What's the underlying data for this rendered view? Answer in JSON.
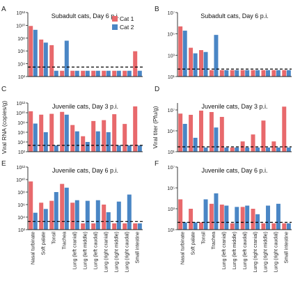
{
  "figure": {
    "legend": [
      {
        "name": "Cat 1",
        "color": "#e8696c"
      },
      {
        "name": "Cat 2",
        "color": "#4a86c5"
      }
    ],
    "ylabel_left": "Viral RNA (copies/g)",
    "ylabel_right": "Viral titer (Pfu/g)",
    "threshold_color": "#000000"
  },
  "chart_data": [
    {
      "panel": "A",
      "type": "bar",
      "title": "Subadult cats, Day 6 p.i.",
      "ylabel": "",
      "scale": "log10",
      "ylim": [
        100,
        1000000000000
      ],
      "yticks": [
        {
          "v": 100,
          "label": "10²"
        },
        {
          "v": 10000,
          "label": "10⁴"
        },
        {
          "v": 1000000,
          "label": "10⁶"
        },
        {
          "v": 100000000,
          "label": "10⁸"
        },
        {
          "v": 10000000000,
          "label": "10¹⁰"
        },
        {
          "v": 1000000000000,
          "label": "10¹²"
        }
      ],
      "threshold": 3000,
      "categories": [
        "Nasal turbinate",
        "Soft palate",
        "Tonsil",
        "Trachea",
        "Lung (left cranial)",
        "Lung (left middle)",
        "Lung (left caudal)",
        "Lung (right cranial)",
        "Lung (right middle)",
        "Lung (right caudal)",
        "Small intestine"
      ],
      "show_xlabels": false,
      "series": [
        {
          "name": "Cat 1",
          "values": [
            8000000000,
            60000000,
            8000000,
            800,
            800,
            800,
            800,
            800,
            800,
            800,
            900000
          ]
        },
        {
          "name": "Cat 2",
          "values": [
            2000000000,
            20000000,
            800,
            40000000,
            800,
            800,
            800,
            800,
            800,
            800,
            800
          ]
        }
      ]
    },
    {
      "panel": "B",
      "type": "bar",
      "title": "Subadult cats, Day 6 p.i.",
      "ylabel": "",
      "scale": "log10",
      "ylim": [
        10,
        10000000
      ],
      "yticks": [
        {
          "v": 10,
          "label": "10¹"
        },
        {
          "v": 1000,
          "label": "10³"
        },
        {
          "v": 100000,
          "label": "10⁵"
        },
        {
          "v": 10000000,
          "label": "10⁷"
        }
      ],
      "threshold": 50,
      "categories": [
        "Nasal turbinate",
        "Soft palate",
        "Tonsil",
        "Trachea",
        "Lung (left cranial)",
        "Lung (left middle)",
        "Lung (left caudal)",
        "Lung (right cranial)",
        "Lung (right middle)",
        "Lung (right caudal)",
        "Small intestine"
      ],
      "show_xlabels": false,
      "series": [
        {
          "name": "Cat 1",
          "values": [
            500000,
            5000,
            3000,
            40,
            40,
            40,
            40,
            40,
            40,
            40,
            40
          ]
        },
        {
          "name": "Cat 2",
          "values": [
            200000,
            1500,
            2000,
            80000,
            40,
            40,
            40,
            40,
            40,
            40,
            40
          ]
        }
      ]
    },
    {
      "panel": "C",
      "type": "bar",
      "title": "Juvenile cats, Day 3 p.i.",
      "ylabel": "Viral RNA (copies/g)",
      "scale": "log10",
      "ylim": [
        100,
        1000000000000
      ],
      "yticks": [
        {
          "v": 100,
          "label": "10²"
        },
        {
          "v": 10000,
          "label": "10⁴"
        },
        {
          "v": 1000000,
          "label": "10⁶"
        },
        {
          "v": 100000000,
          "label": "10⁸"
        },
        {
          "v": 10000000000,
          "label": "10¹⁰"
        },
        {
          "v": 1000000000000,
          "label": "10¹²"
        }
      ],
      "threshold": 2000,
      "categories": [
        "Nasal turbinate",
        "Soft palate",
        "Tonsil",
        "Trachea",
        "Lung (left cranial)",
        "Lung (left middle)",
        "Lung (left caudal)",
        "Lung (right cranial)",
        "Lung (right middle)",
        "Lung (right caudal)",
        "Small intestine"
      ],
      "show_xlabels": false,
      "series": [
        {
          "name": "Cat 1",
          "values": [
            20000000000,
            4000000000,
            6000000000,
            15000000000,
            30000000,
            150000,
            200000000,
            300000000,
            5000000000,
            50000000,
            200000000000
          ]
        },
        {
          "name": "Cat 2",
          "values": [
            60000000,
            1000000,
            2000,
            4000000000,
            1500000,
            10000,
            1500000,
            1000000,
            2000,
            2000,
            2000
          ]
        }
      ]
    },
    {
      "panel": "D",
      "type": "bar",
      "title": "Juvenile cats, Day 3 p.i.",
      "ylabel": "Viral titer (Pfu/g)",
      "scale": "log10",
      "ylim": [
        10,
        100000000
      ],
      "yticks": [
        {
          "v": 10,
          "label": "10¹"
        },
        {
          "v": 10000,
          "label": "10⁴"
        },
        {
          "v": 10000000,
          "label": "10⁷"
        }
      ],
      "threshold": 50,
      "categories": [
        "Nasal turbinate",
        "Soft palate",
        "Tonsil",
        "Trachea",
        "Lung (left cranial)",
        "Lung (left middle)",
        "Lung (left caudal)",
        "Lung (right cranial)",
        "Lung (right middle)",
        "Lung (right caudal)",
        "Small intestine"
      ],
      "show_xlabels": false,
      "series": [
        {
          "name": "Cat 1",
          "values": [
            3000000,
            2000000,
            8000000,
            5000000,
            1000000,
            40,
            300,
            3000,
            300000,
            300,
            30000000
          ]
        },
        {
          "name": "Cat 2",
          "values": [
            100000,
            1000,
            40,
            30000,
            40,
            40,
            40,
            40,
            40,
            40,
            40
          ]
        }
      ]
    },
    {
      "panel": "E",
      "type": "bar",
      "title": "Juvenile cats, Day 6 p.i.",
      "ylabel": "",
      "scale": "log10",
      "ylim": [
        100,
        1000000000000
      ],
      "yticks": [
        {
          "v": 100,
          "label": "10²"
        },
        {
          "v": 10000,
          "label": "10⁴"
        },
        {
          "v": 1000000,
          "label": "10⁶"
        },
        {
          "v": 100000000,
          "label": "10⁸"
        },
        {
          "v": 10000000000,
          "label": "10¹⁰"
        },
        {
          "v": 1000000000000,
          "label": "10¹²"
        }
      ],
      "threshold": 2000,
      "categories": [
        "Nasal turbinate",
        "Soft palate",
        "Tonsil",
        "Trachea",
        "Lung (left cranial)",
        "Lung (left middle)",
        "Lung (left caudal)",
        "Lung (right cranial)",
        "Lung (right middle)",
        "Lung (right caudal)",
        "Small intestine"
      ],
      "show_xlabels": true,
      "series": [
        {
          "name": "Cat 1",
          "values": [
            5000000000,
            2000000,
            4000000,
            2000000000,
            2000000,
            1000,
            1000,
            1000000,
            1000,
            1000,
            1000
          ]
        },
        {
          "name": "Cat 2",
          "values": [
            50000,
            200000,
            100000000,
            500000000,
            5000000,
            4000000,
            5000000,
            60000,
            3000000,
            40000000,
            1000
          ]
        }
      ]
    },
    {
      "panel": "F",
      "type": "bar",
      "title": "Juvenile cats, Day 6 p.i.",
      "ylabel": "",
      "scale": "log10",
      "ylim": [
        10,
        10000000
      ],
      "yticks": [
        {
          "v": 10,
          "label": "10¹"
        },
        {
          "v": 1000,
          "label": "10³"
        },
        {
          "v": 100000,
          "label": "10⁵"
        },
        {
          "v": 10000000,
          "label": "10⁷"
        }
      ],
      "threshold": 50,
      "categories": [
        "Nasal turbinate",
        "Soft palate",
        "Tonsil",
        "Trachea",
        "Lung (left cranial)",
        "Lung (left middle)",
        "Lung (left caudal)",
        "Lung (right cranial)",
        "Lung (right middle)",
        "Lung (right caudal)",
        "Small intestine"
      ],
      "show_xlabels": true,
      "series": [
        {
          "name": "Cat 1",
          "values": [
            8000,
            1000,
            50,
            3000,
            2500,
            40,
            1500,
            1000,
            40,
            40,
            40
          ]
        },
        {
          "name": "Cat 2",
          "values": [
            50,
            50,
            8000,
            30000,
            2000,
            1500,
            2000,
            300,
            2000,
            3000,
            40
          ]
        }
      ]
    }
  ]
}
